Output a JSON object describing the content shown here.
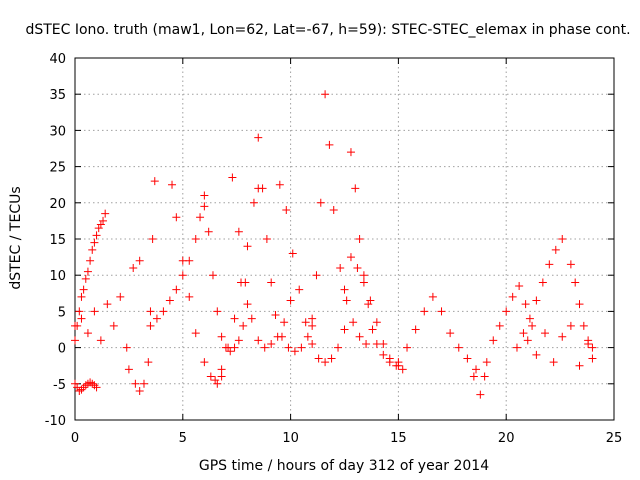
{
  "chart_data": {
    "type": "scatter",
    "title": "dSTEC Iono. truth (maw1, Lon=62, Lat=-67, h=59): STEC-STEC_elemax in phase cont.",
    "xlabel": "GPS time / hours of day 312 of year 2014",
    "ylabel": "dSTEC  / TECUs",
    "xlim": [
      0,
      25
    ],
    "ylim": [
      -10,
      40
    ],
    "x_ticks": [
      0,
      5,
      10,
      15,
      20,
      25
    ],
    "x_tick_labels": [
      "0",
      "5",
      "10",
      "15",
      "20",
      "25"
    ],
    "y_ticks": [
      -10,
      -5,
      0,
      5,
      10,
      15,
      20,
      25,
      30,
      35,
      40
    ],
    "y_tick_labels": [
      "-10",
      "-5",
      "0",
      "5",
      "10",
      "15",
      "20",
      "25",
      "30",
      "35",
      "40"
    ],
    "grid": true,
    "marker": "plus",
    "color": "#ff0000",
    "series": [
      {
        "x": [
          0.0,
          0.1,
          0.2,
          0.3,
          0.4,
          0.5,
          0.6,
          0.7,
          0.8,
          0.9,
          1.0,
          1.1,
          1.2,
          1.3,
          1.4
        ],
        "y": [
          1.0,
          3.0,
          5.0,
          7.0,
          8.0,
          9.5,
          10.5,
          12.0,
          13.5,
          14.5,
          15.5,
          16.5,
          17.0,
          17.5,
          18.5
        ]
      },
      {
        "x": [
          0.0,
          0.1,
          0.2,
          0.3,
          0.4,
          0.5,
          0.6,
          0.7,
          0.8,
          0.9,
          1.0
        ],
        "y": [
          -5.0,
          -5.5,
          -6.0,
          -5.8,
          -5.5,
          -5.2,
          -5.0,
          -4.8,
          -5.0,
          -5.2,
          -5.5
        ]
      },
      {
        "x": [
          0.0,
          0.3,
          0.6,
          0.9,
          1.2,
          1.5,
          1.8,
          2.1,
          2.4,
          2.7,
          3.0
        ],
        "y": [
          3.0,
          4.0,
          2.0,
          5.0,
          1.0,
          6.0,
          3.0,
          7.0,
          0.0,
          11.0,
          12.0
        ]
      },
      {
        "x": [
          2.5,
          2.8,
          3.0,
          3.2,
          3.4,
          3.5,
          3.6,
          3.7
        ],
        "y": [
          -3.0,
          -5.0,
          -6.0,
          -5.0,
          -2.0,
          5.0,
          15.0,
          23.0
        ]
      },
      {
        "x": [
          3.5,
          3.8,
          4.1,
          4.4,
          4.7,
          5.0,
          5.3,
          5.6,
          5.8,
          6.0
        ],
        "y": [
          3.0,
          4.0,
          5.0,
          6.5,
          8.0,
          10.0,
          12.0,
          15.0,
          18.0,
          19.5
        ]
      },
      {
        "x": [
          4.5,
          4.7,
          5.0,
          5.3,
          5.6,
          6.0,
          6.3,
          6.6,
          6.8
        ],
        "y": [
          22.5,
          18.0,
          12.0,
          7.0,
          2.0,
          -2.0,
          -4.0,
          -5.0,
          -4.0
        ]
      },
      {
        "x": [
          6.0,
          6.2,
          6.4,
          6.6,
          6.8,
          7.0,
          7.2,
          7.4,
          7.6,
          7.8,
          8.0
        ],
        "y": [
          21.0,
          16.0,
          10.0,
          5.0,
          1.5,
          0.0,
          -0.5,
          0.0,
          1.0,
          3.0,
          6.0
        ]
      },
      {
        "x": [
          6.5,
          6.8,
          7.1,
          7.4,
          7.7,
          8.0,
          8.3,
          8.5
        ],
        "y": [
          -4.5,
          -3.0,
          0.0,
          4.0,
          9.0,
          14.0,
          20.0,
          22.0
        ]
      },
      {
        "x": [
          7.3,
          7.6,
          7.9,
          8.2,
          8.5,
          8.8,
          9.1,
          9.4,
          9.7,
          10.0
        ],
        "y": [
          23.5,
          16.0,
          9.0,
          4.0,
          1.0,
          0.0,
          0.5,
          1.5,
          3.5,
          6.5
        ]
      },
      {
        "x": [
          8.5,
          8.7,
          8.9,
          9.1,
          9.3,
          9.6,
          9.9,
          10.2,
          10.5,
          10.8,
          11.0
        ],
        "y": [
          29.0,
          22.0,
          15.0,
          9.0,
          4.5,
          1.5,
          0.0,
          -0.5,
          0.0,
          1.5,
          3.0
        ]
      },
      {
        "x": [
          9.5,
          9.8,
          10.1,
          10.4,
          10.7,
          11.0,
          11.3,
          11.6,
          11.9,
          12.2,
          12.5
        ],
        "y": [
          22.5,
          19.0,
          13.0,
          8.0,
          3.5,
          0.5,
          -1.5,
          -2.0,
          -1.5,
          0.0,
          2.5
        ]
      },
      {
        "x": [
          11.0,
          11.2,
          11.4,
          11.6,
          11.8,
          12.0,
          12.3,
          12.6,
          12.9,
          13.2,
          13.5
        ],
        "y": [
          4.0,
          10.0,
          20.0,
          35.0,
          28.0,
          19.0,
          11.0,
          6.5,
          3.5,
          1.5,
          0.5
        ]
      },
      {
        "x": [
          12.8,
          13.0,
          13.2,
          13.4,
          13.6,
          13.8,
          14.0,
          14.3,
          14.6,
          15.0
        ],
        "y": [
          27.0,
          22.0,
          15.0,
          10.0,
          6.0,
          2.5,
          0.5,
          -1.0,
          -2.0,
          -2.5
        ]
      },
      {
        "x": [
          12.5,
          12.8,
          13.1,
          13.4,
          13.7,
          14.0,
          14.3,
          14.6,
          14.9,
          15.2
        ],
        "y": [
          8.0,
          12.5,
          11.0,
          9.0,
          6.5,
          3.5,
          0.5,
          -1.5,
          -2.5,
          -3.0
        ]
      },
      {
        "x": [
          15.0,
          15.4,
          15.8,
          16.2,
          16.6,
          17.0,
          17.4,
          17.8,
          18.2,
          18.6,
          19.0
        ],
        "y": [
          -2.0,
          0.0,
          2.5,
          5.0,
          7.0,
          5.0,
          2.0,
          0.0,
          -1.5,
          -3.0,
          -4.0
        ]
      },
      {
        "x": [
          18.5,
          18.8,
          19.1,
          19.4,
          19.7,
          20.0,
          20.3,
          20.6,
          20.9,
          21.2
        ],
        "y": [
          -4.0,
          -6.5,
          -2.0,
          1.0,
          3.0,
          5.0,
          7.0,
          8.5,
          6.0,
          3.0
        ]
      },
      {
        "x": [
          20.5,
          20.8,
          21.1,
          21.4,
          21.7,
          22.0,
          22.3,
          22.6
        ],
        "y": [
          0.0,
          2.0,
          4.0,
          6.5,
          9.0,
          11.5,
          13.5,
          15.0
        ]
      },
      {
        "x": [
          23.0,
          23.2,
          23.4,
          23.6,
          23.8,
          24.0
        ],
        "y": [
          11.5,
          9.0,
          6.0,
          3.0,
          0.5,
          -1.5
        ]
      },
      {
        "x": [
          21.0,
          21.4,
          21.8,
          22.2,
          22.6,
          23.0,
          23.4,
          23.8,
          24.0
        ],
        "y": [
          1.0,
          -1.0,
          2.0,
          -2.0,
          1.5,
          3.0,
          -2.5,
          1.0,
          0.0
        ]
      }
    ]
  }
}
